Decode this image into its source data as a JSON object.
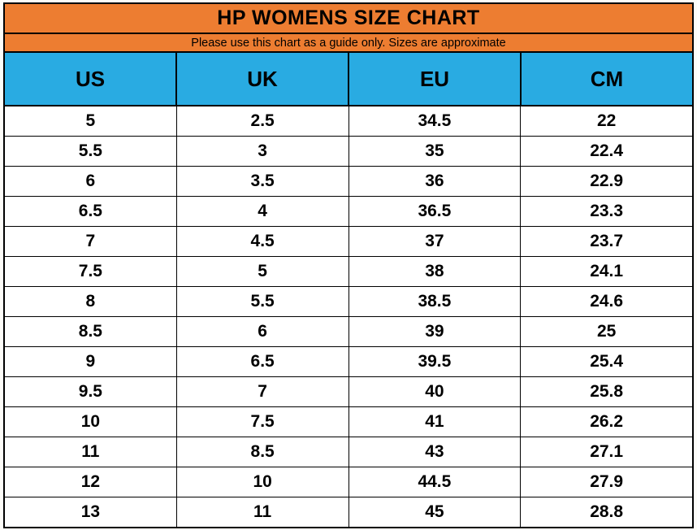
{
  "title": "HP WOMENS SIZE CHART",
  "subtitle": "Please use this chart as a guide only. Sizes are approximate",
  "colors": {
    "title_bg": "#ED7D31",
    "header_bg": "#29ABE2",
    "row_bg": "#FFFFFF",
    "border": "#000000",
    "text": "#000000"
  },
  "chart_data": {
    "type": "table",
    "title": "HP WOMENS SIZE CHART",
    "subtitle": "Please use this chart as a guide only. Sizes are approximate",
    "columns": [
      "US",
      "UK",
      "EU",
      "CM"
    ],
    "rows": [
      [
        "5",
        "2.5",
        "34.5",
        "22"
      ],
      [
        "5.5",
        "3",
        "35",
        "22.4"
      ],
      [
        "6",
        "3.5",
        "36",
        "22.9"
      ],
      [
        "6.5",
        "4",
        "36.5",
        "23.3"
      ],
      [
        "7",
        "4.5",
        "37",
        "23.7"
      ],
      [
        "7.5",
        "5",
        "38",
        "24.1"
      ],
      [
        "8",
        "5.5",
        "38.5",
        "24.6"
      ],
      [
        "8.5",
        "6",
        "39",
        "25"
      ],
      [
        "9",
        "6.5",
        "39.5",
        "25.4"
      ],
      [
        "9.5",
        "7",
        "40",
        "25.8"
      ],
      [
        "10",
        "7.5",
        "41",
        "26.2"
      ],
      [
        "11",
        "8.5",
        "43",
        "27.1"
      ],
      [
        "12",
        "10",
        "44.5",
        "27.9"
      ],
      [
        "13",
        "11",
        "45",
        "28.8"
      ]
    ]
  }
}
